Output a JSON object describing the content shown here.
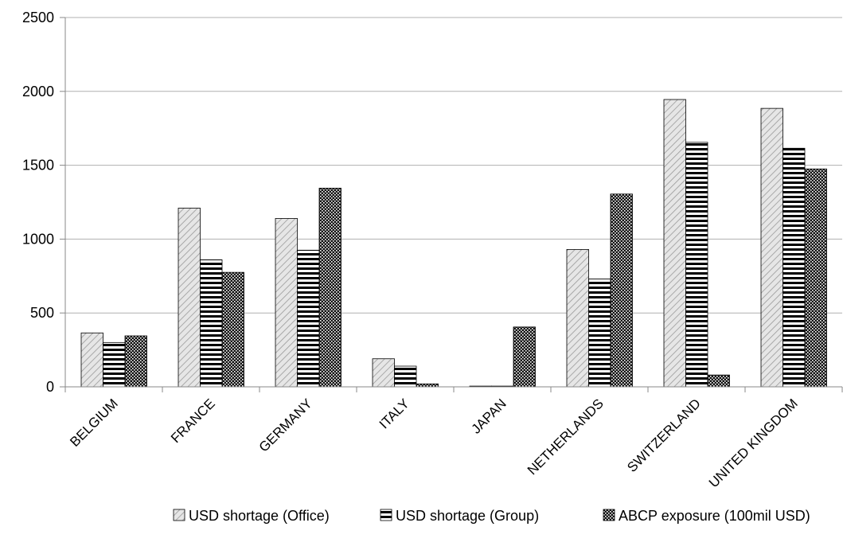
{
  "chart_data": {
    "type": "bar",
    "categories": [
      "BELGIUM",
      "FRANCE",
      "GERMANY",
      "ITALY",
      "JAPAN",
      "NETHERLANDS",
      "SWITZERLAND",
      "UNITED KINGDOM"
    ],
    "series": [
      {
        "name": "USD shortage (Office)",
        "pattern": "diagonal",
        "values": [
          365,
          1210,
          1140,
          190,
          5,
          930,
          1945,
          1885
        ]
      },
      {
        "name": "USD shortage (Group)",
        "pattern": "horizontal",
        "values": [
          300,
          860,
          925,
          140,
          5,
          730,
          1655,
          1615
        ]
      },
      {
        "name": "ABCP exposure (100mil USD)",
        "pattern": "dots",
        "values": [
          345,
          775,
          1345,
          20,
          405,
          1305,
          80,
          1475
        ]
      }
    ],
    "yticks": [
      "0",
      "500",
      "1000",
      "1500",
      "2000",
      "2500"
    ],
    "ylim": [
      0,
      2500
    ],
    "grid": true,
    "legend_position": "bottom",
    "colors": {
      "gridline": "#b0b0b0",
      "axis": "#888888",
      "bar_outline": "#000000",
      "diagonal_fill": "#d9d9d9"
    }
  }
}
